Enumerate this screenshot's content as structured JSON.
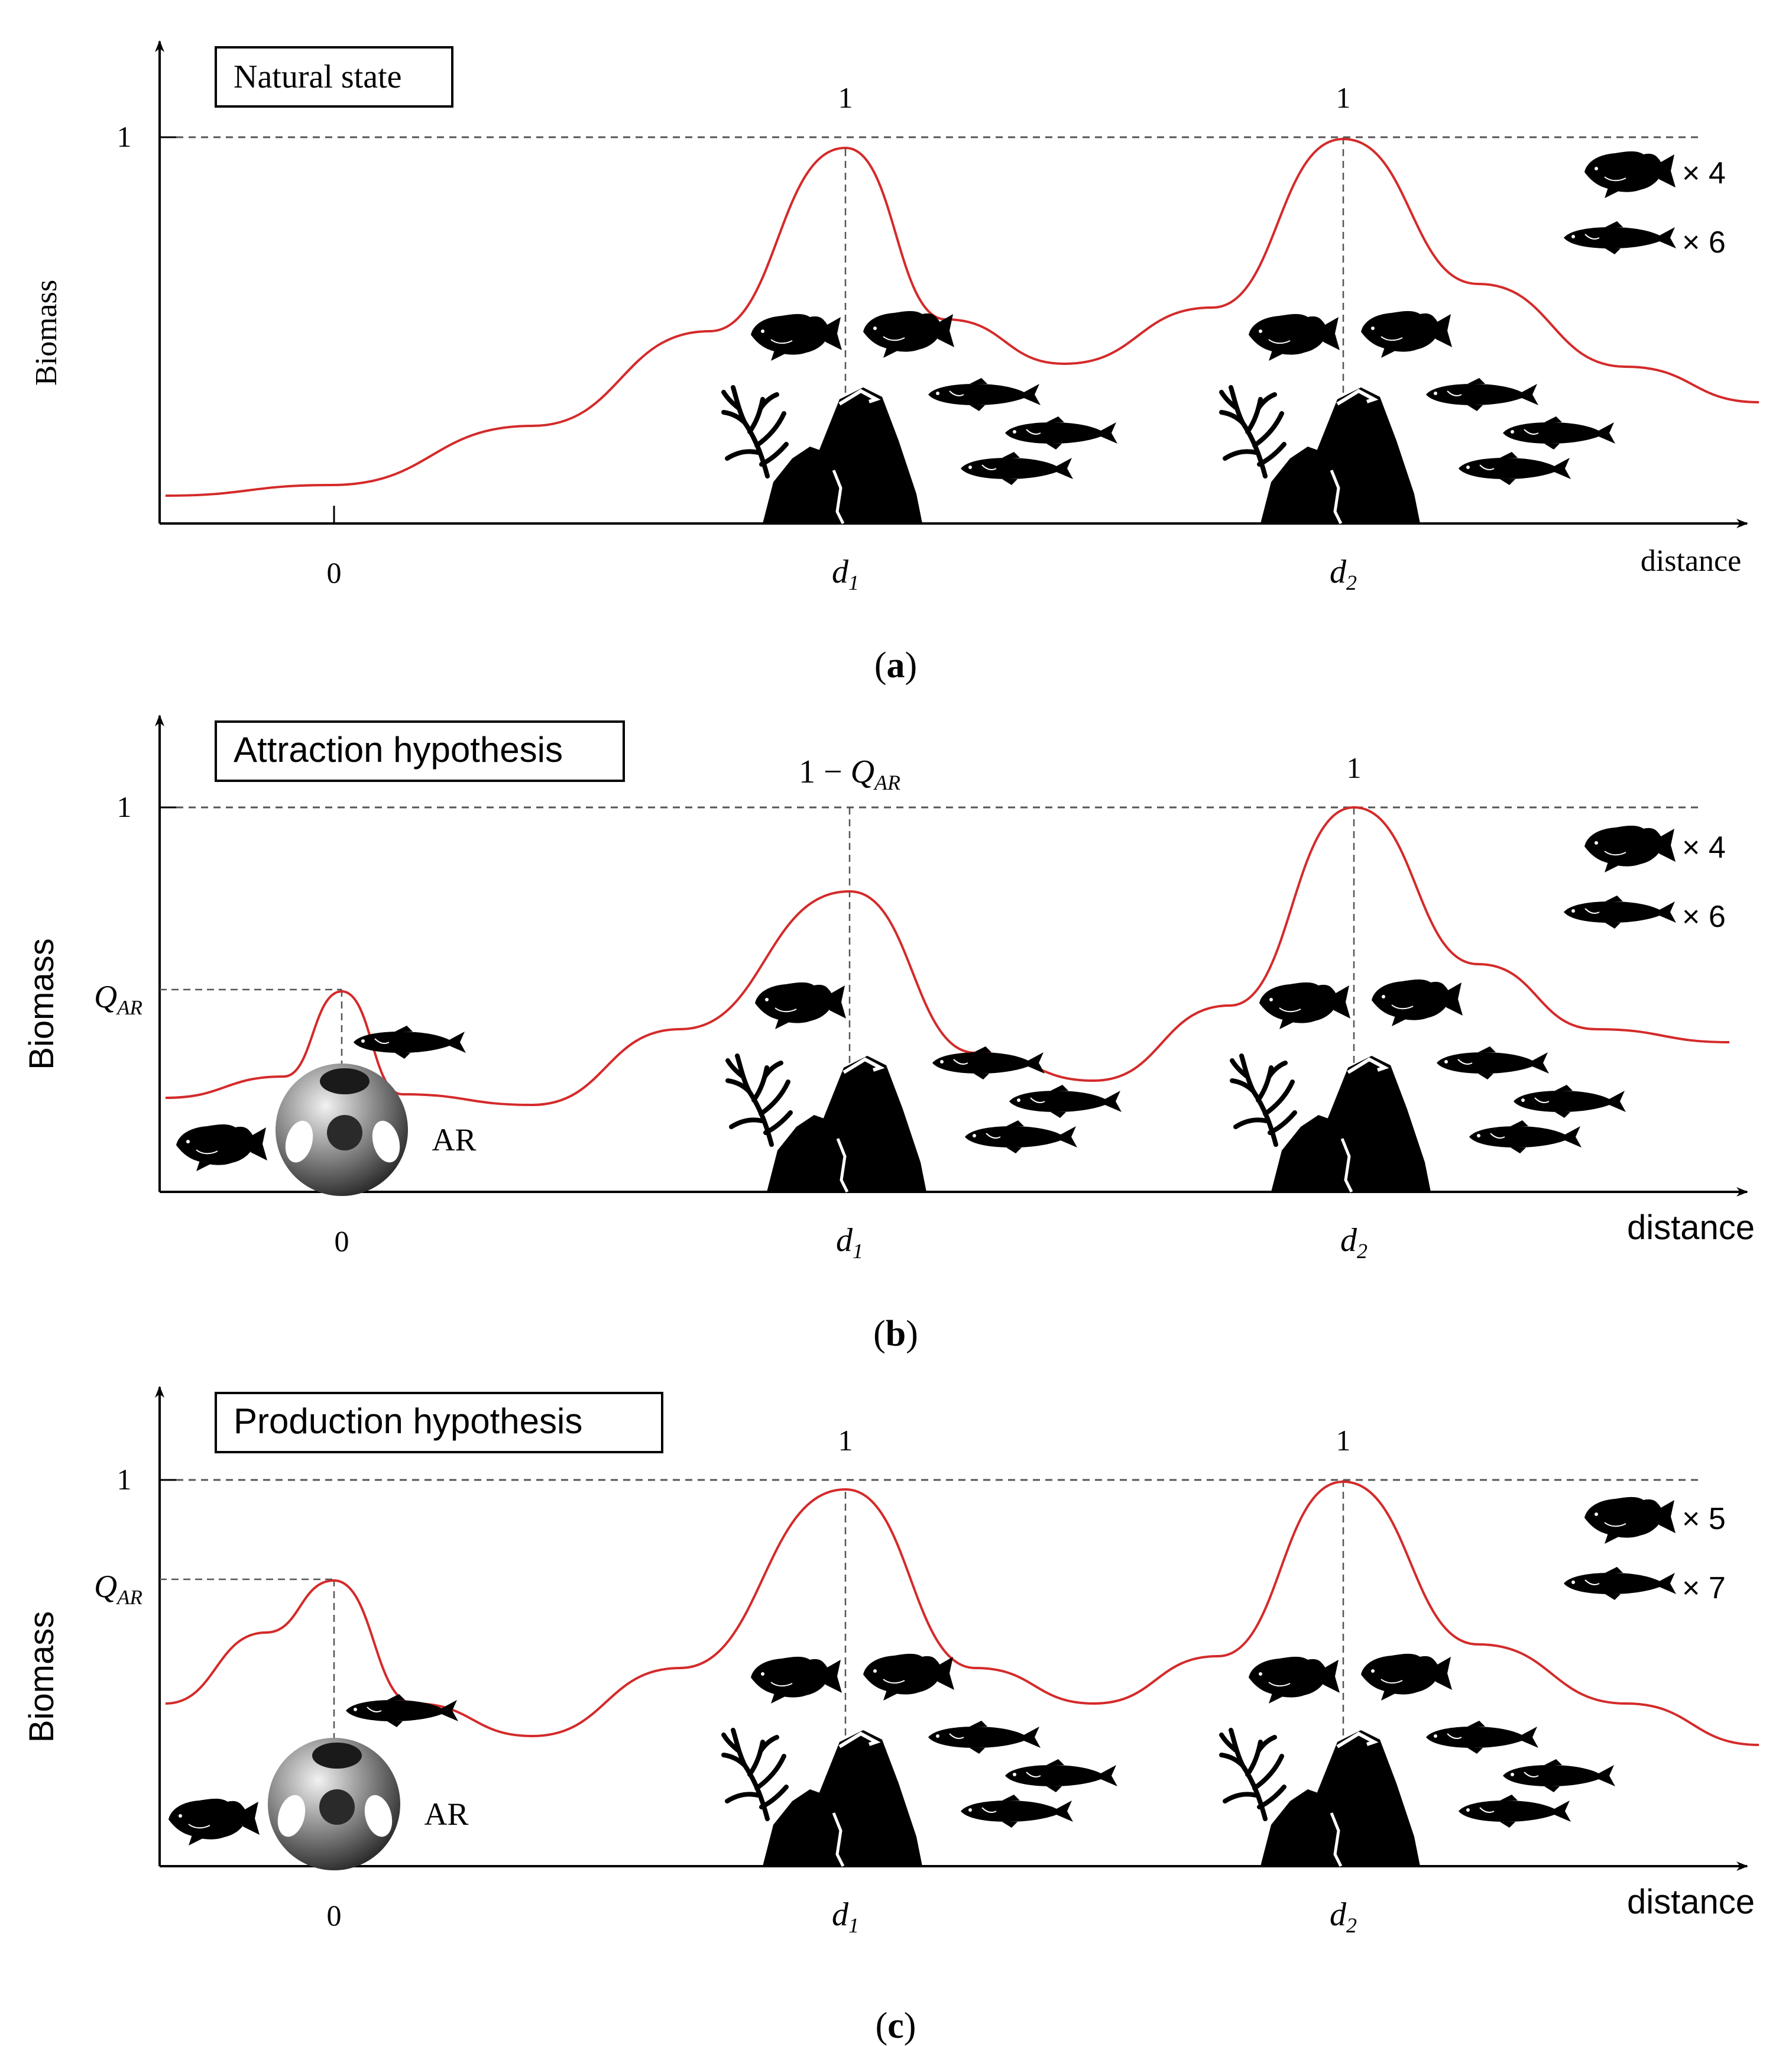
{
  "panels": [
    {
      "id": "a",
      "title": "Natural state",
      "y_label": "Biomass",
      "y_tick": "1",
      "x_label": "distance",
      "x_ticks": {
        "origin": "0",
        "d1": "d",
        "d1_sub": "1",
        "d2": "d",
        "d2_sub": "2"
      },
      "peak_labels": {
        "d1": "1",
        "d2": "1"
      },
      "q_label": null,
      "ar_label": null,
      "legend": [
        {
          "icon": "grouper-icon",
          "count": "× 4"
        },
        {
          "icon": "slim-fish-icon",
          "count": "× 6"
        }
      ],
      "caption": "a"
    },
    {
      "id": "b",
      "title": "Attraction hypothesis",
      "y_label": "Biomass",
      "y_tick": "1",
      "x_label": "distance",
      "x_ticks": {
        "origin": "0",
        "d1": "d",
        "d1_sub": "1",
        "d2": "d",
        "d2_sub": "2"
      },
      "peak_labels": {
        "d1": "1 − Q",
        "d1_sub": "AR",
        "d2": "1"
      },
      "q_label": {
        "main": "Q",
        "sub": "AR"
      },
      "ar_label": "AR",
      "legend": [
        {
          "icon": "grouper-icon",
          "count": "× 4"
        },
        {
          "icon": "slim-fish-icon",
          "count": "× 6"
        }
      ],
      "caption": "b"
    },
    {
      "id": "c",
      "title": "Production hypothesis",
      "y_label": "Biomass",
      "y_tick": "1",
      "x_label": "distance",
      "x_ticks": {
        "origin": "0",
        "d1": "d",
        "d1_sub": "1",
        "d2": "d",
        "d2_sub": "2"
      },
      "peak_labels": {
        "d1": "1",
        "d2": "1"
      },
      "q_label": {
        "main": "Q",
        "sub": "AR"
      },
      "ar_label": "AR",
      "legend": [
        {
          "icon": "grouper-icon",
          "count": "× 5"
        },
        {
          "icon": "slim-fish-icon",
          "count": "× 7"
        }
      ],
      "caption": "c"
    }
  ],
  "colors": {
    "curve": "#d42a2a",
    "axis": "#000000",
    "dashed": "#555555",
    "silhouette": "#000000"
  }
}
